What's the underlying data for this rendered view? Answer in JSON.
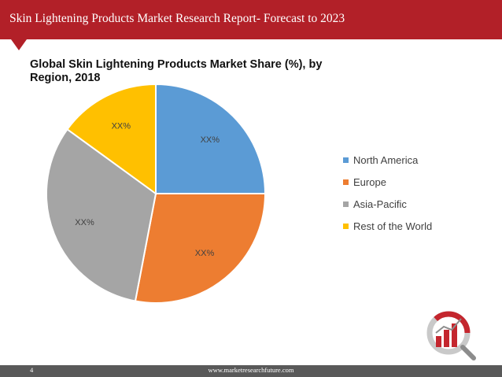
{
  "header": {
    "title": "Skin Lightening Products Market Research Report- Forecast to 2023"
  },
  "footer": {
    "page_number": "4",
    "url": "www.marketresearchfuture.com"
  },
  "chart_data": {
    "type": "pie",
    "title": "Global Skin Lightening Products Market Share (%), by Region, 2018",
    "categories": [
      "North America",
      "Europe",
      "Asia-Pacific",
      "Rest of the World"
    ],
    "values": [
      25,
      28,
      32,
      15
    ],
    "data_labels": [
      "XX%",
      "XX%",
      "XX%",
      "XX%"
    ],
    "colors": [
      "#5b9bd5",
      "#ed7d31",
      "#a5a5a5",
      "#ffc000"
    ],
    "legend_position": "right",
    "start_angle_deg": 0,
    "direction": "clockwise"
  },
  "colors": {
    "header": "#b22028",
    "footer": "#595959"
  }
}
